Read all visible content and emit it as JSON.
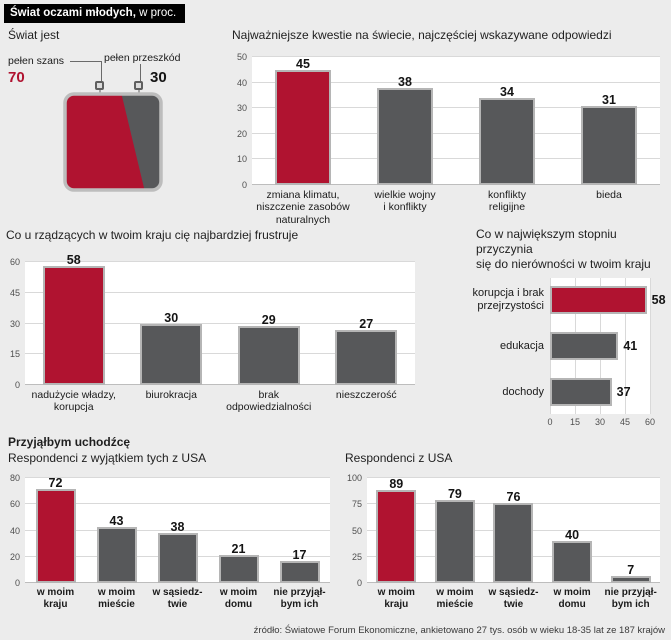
{
  "header": {
    "title_bold": "Świat oczami młodych,",
    "title_rest": " w proc."
  },
  "colors": {
    "accent": "#b01330",
    "bar": "#57585a",
    "bar_outline": "#b5b5b5",
    "gridline": "#d9d9d9",
    "background": "#ececec"
  },
  "refugee_section_title": "Przyjąłbym uchodźcę",
  "footer": {
    "source": "źródło: Światowe Forum Ekonomiczne, ankietowano 27 tys. osób w wieku 18-35 lat ze 187 krajów"
  },
  "chart_data": [
    {
      "id": "swiat-jest",
      "type": "pie",
      "title": "Świat jest",
      "categories": [
        "pełen szans",
        "pełen przeszkód"
      ],
      "values": [
        70,
        30
      ],
      "highlight_index": 0
    },
    {
      "id": "kwestie",
      "type": "bar",
      "title": "Najważniejsze kwestie na świecie, najczęściej wskazywane odpowiedzi",
      "categories": [
        "zmiana klimatu,\nniszczenie zasobów\nnaturalnych",
        "wielkie wojny\ni konflikty",
        "konflikty\nreligijne",
        "bieda"
      ],
      "values": [
        45,
        38,
        34,
        31
      ],
      "highlight_index": 0,
      "ylim": [
        0,
        50
      ],
      "yticks": [
        0,
        10,
        20,
        30,
        40,
        50
      ]
    },
    {
      "id": "frustracja",
      "type": "bar",
      "title": "Co u rządzących w twoim kraju cię najbardziej frustruje",
      "categories": [
        "nadużycie władzy,\nkorupcja",
        "biurokracja",
        "brak\nodpowiedzialności",
        "nieszczerość"
      ],
      "values": [
        58,
        30,
        29,
        27
      ],
      "highlight_index": 0,
      "ylim": [
        0,
        60
      ],
      "yticks": [
        0,
        15,
        30,
        45,
        60
      ]
    },
    {
      "id": "nierownosci",
      "type": "bar-horizontal",
      "title": "Co w największym stopniu przyczynia\nsię do nierówności w twoim kraju",
      "categories": [
        "korupcja i brak\nprzejrzystości",
        "edukacja",
        "dochody"
      ],
      "values": [
        58,
        41,
        37
      ],
      "highlight_index": 0,
      "xlim": [
        0,
        60
      ],
      "xticks": [
        0,
        15,
        30,
        45,
        60
      ]
    },
    {
      "id": "uchodzcy-bez-usa",
      "type": "bar",
      "title": "Respondenci z wyjątkiem tych z USA",
      "categories": [
        "w moim\nkraju",
        "w moim\nmieście",
        "w sąsiedz-\ntwie",
        "w moim\ndomu",
        "nie przyjął-\nbym ich"
      ],
      "values": [
        72,
        43,
        38,
        21,
        17
      ],
      "highlight_index": 0,
      "ylim": [
        0,
        80
      ],
      "yticks": [
        0,
        20,
        40,
        60,
        80
      ]
    },
    {
      "id": "uchodzcy-usa",
      "type": "bar",
      "title": "Respondenci z USA",
      "categories": [
        "w moim\nkraju",
        "w moim\nmieście",
        "w sąsiedz-\ntwie",
        "w moim\ndomu",
        "nie przyjął-\nbym ich"
      ],
      "values": [
        89,
        79,
        76,
        40,
        7
      ],
      "highlight_index": 0,
      "ylim": [
        0,
        100
      ],
      "yticks": [
        0,
        25,
        50,
        75,
        100
      ]
    }
  ]
}
